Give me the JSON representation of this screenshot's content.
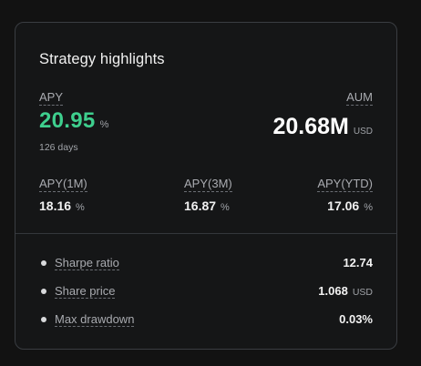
{
  "card": {
    "title": "Strategy highlights",
    "apy": {
      "label": "APY",
      "value": "20.95",
      "unit": "%",
      "period": "126 days"
    },
    "aum": {
      "label": "AUM",
      "value": "20.68M",
      "unit": "USD"
    },
    "metrics": [
      {
        "label": "APY(1M)",
        "value": "18.16",
        "unit": "%"
      },
      {
        "label": "APY(3M)",
        "value": "16.87",
        "unit": "%"
      },
      {
        "label": "APY(YTD)",
        "value": "17.06",
        "unit": "%"
      }
    ],
    "details": [
      {
        "label": "Sharpe ratio",
        "value": "12.74",
        "unit": ""
      },
      {
        "label": "Share price",
        "value": "1.068",
        "unit": "USD"
      },
      {
        "label": "Max drawdown",
        "value": "0.03%",
        "unit": ""
      }
    ]
  },
  "colors": {
    "background": "#121212",
    "card_border": "#3a3d42",
    "apy_green": "#3ecf8e",
    "muted_text": "#a9abb0"
  }
}
